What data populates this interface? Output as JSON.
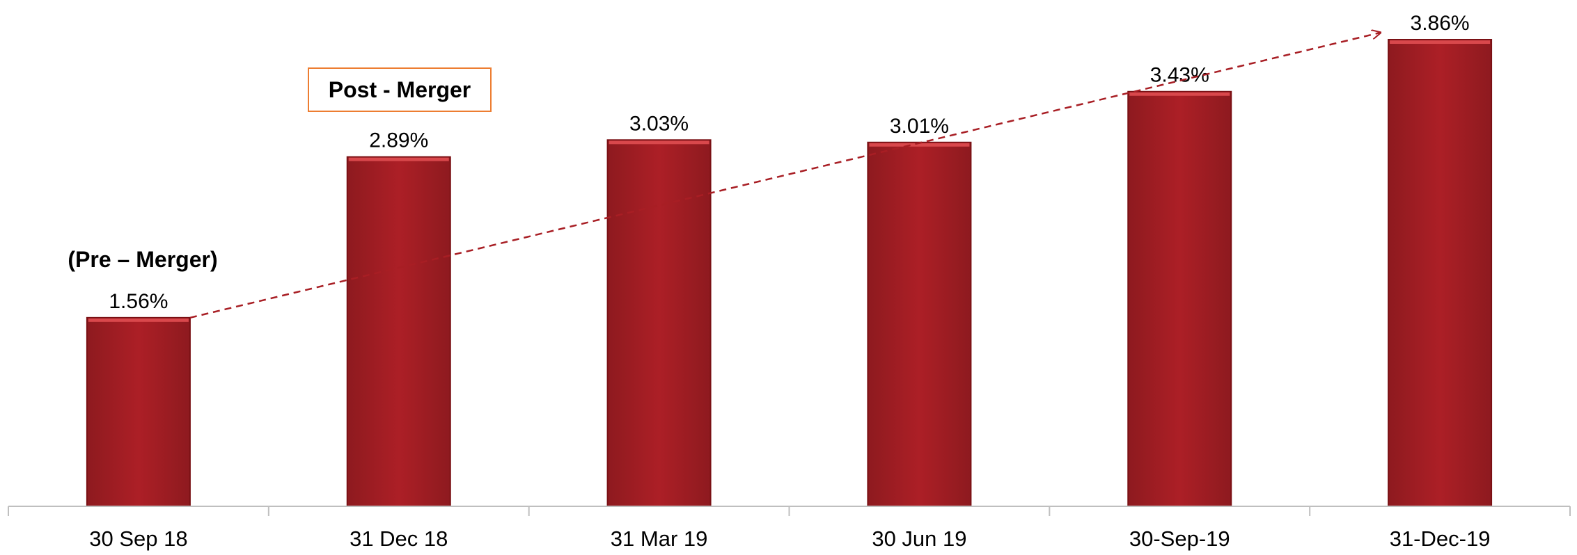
{
  "chart_data": {
    "type": "bar",
    "categories": [
      "30 Sep 18",
      "31 Dec 18",
      "31 Mar 19",
      "30 Jun 19",
      "30-Sep-19",
      "31-Dec-19"
    ],
    "values": [
      1.56,
      2.89,
      3.03,
      3.01,
      3.43,
      3.86
    ],
    "value_labels": [
      "1.56%",
      "2.89%",
      "3.03%",
      "3.01%",
      "3.43%",
      "3.86%"
    ],
    "unit": "%",
    "title": "",
    "xlabel": "",
    "ylabel": "",
    "ylim": [
      0,
      4.2
    ],
    "grid": false,
    "legend": "none",
    "trend_arrow": {
      "style": "dashed",
      "from_category": "30 Sep 18",
      "to_category": "31-Dec-19"
    },
    "annotations": {
      "pre_merger": "(Pre – Merger)",
      "post_merger": "Post - Merger"
    },
    "colors": {
      "bar": "#A81E24",
      "bar_highlight": "#D9484C",
      "bar_edge": "#7A1014",
      "trend": "#A81E24",
      "callout_border": "#ED7D31",
      "axis": "#BFBFBF"
    }
  }
}
